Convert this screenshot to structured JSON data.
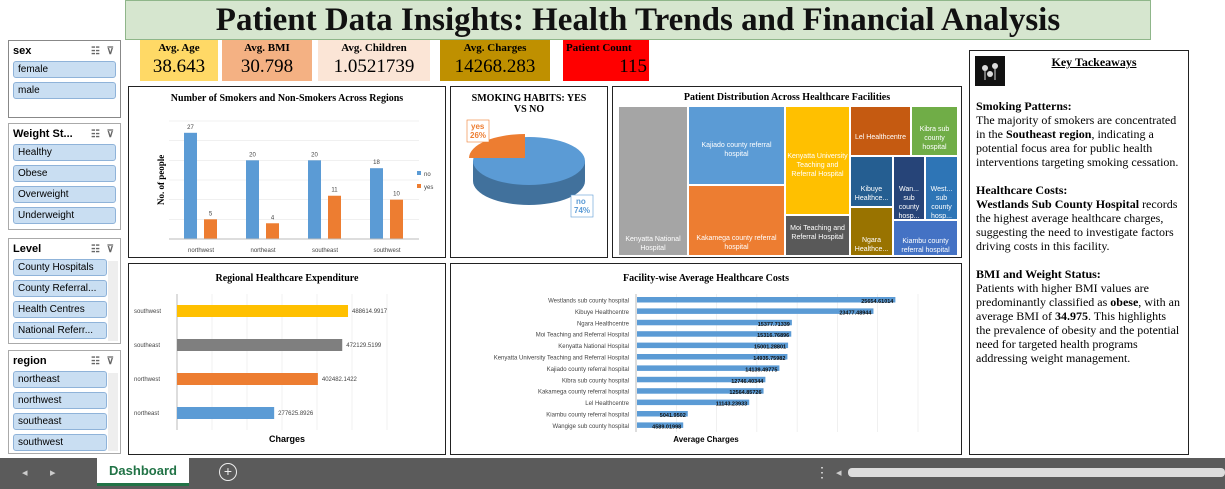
{
  "title": "Patient Data Insights: Health Trends and Financial Analysis",
  "slicers": {
    "sex": {
      "title": "sex",
      "items": [
        "female",
        "male"
      ]
    },
    "weight": {
      "title": "Weight St...",
      "items": [
        "Healthy",
        "Obese",
        "Overweight",
        "Underweight"
      ]
    },
    "level": {
      "title": "Level",
      "items": [
        "County Hospitals",
        "County Referral...",
        "Health Centres",
        "National Referr..."
      ]
    },
    "region": {
      "title": "region",
      "items": [
        "northeast",
        "northwest",
        "southeast",
        "southwest"
      ]
    }
  },
  "kpis": {
    "age": {
      "label": "Avg. Age",
      "value": "38.643",
      "color": "#ffd966"
    },
    "bmi": {
      "label": "Avg. BMI",
      "value": "30.798",
      "color": "#f4b183"
    },
    "children": {
      "label": "Avg. Children",
      "value": "1.0521739",
      "color": "#fbe5d6"
    },
    "charges": {
      "label": "Avg. Charges",
      "value": "14268.283",
      "color": "#bf9000"
    },
    "count": {
      "label": "Patient Count",
      "value": "115",
      "color": "#ff0000"
    }
  },
  "smokers_chart": {
    "title": "Number of Smokers and Non-Smokers Across Regions",
    "ylabel": "No. of people",
    "legend": [
      "no",
      "yes"
    ]
  },
  "pie": {
    "title": "SMOKING HABITS: YES VS NO",
    "yes_label": "yes",
    "yes_pct": "26%",
    "no_label": "no",
    "no_pct": "74%"
  },
  "treemap": {
    "title": "Patient Distribution Across Healthcare Facilities",
    "labels": [
      "Kenyatta National Hospital",
      "Kajiado county referral hospital",
      "Kakamega county referral hospital",
      "Kenyatta University Teaching and Referral Hospital",
      "Moi Teaching and Referral Hospital",
      "Lel Healthcentre",
      "Kibra sub county hospital",
      "Kibuye Healthce...",
      "Wan... sub county hosp...",
      "West... sub county hosp...",
      "Ngara Healthce...",
      "Kiambu county referral hospital"
    ]
  },
  "expenditure": {
    "title": "Regional Healthcare Expenditure",
    "xlabel": "Charges"
  },
  "facility": {
    "title": "Facility-wise Average Healthcare Costs",
    "xlabel": "Average Charges"
  },
  "takeaways": {
    "title": "Key Tackeaways",
    "smoke_head": "Smoking Patterns:",
    "smoke_1": "The majority of smokers are concentrated in the ",
    "smoke_bold": "Southeast region",
    "smoke_2": ", indicating a potential focus area for public health interventions targeting smoking cessation.",
    "cost_head": "Healthcare Costs:",
    "cost_bold": "Westlands Sub County Hospital",
    "cost_text": " records the highest average healthcare charges, suggesting the need to investigate factors driving costs in this facility.",
    "bmi_head": "BMI and Weight Status:",
    "bmi_1": "Patients with higher BMI values are predominantly classified as ",
    "bmi_bold1": "obese",
    "bmi_2": ", with an average BMI of ",
    "bmi_bold2": "34.975",
    "bmi_3": ". This highlights the prevalence of obesity and the potential need for targeted health programs addressing weight management."
  },
  "sheet_tab": "Dashboard",
  "chart_data": [
    {
      "type": "bar",
      "title": "Number of Smokers and Non-Smokers Across Regions",
      "ylabel": "No. of people",
      "categories": [
        "northwest",
        "northeast",
        "southeast",
        "southwest"
      ],
      "series": [
        {
          "name": "no",
          "values": [
            27,
            20,
            20,
            18
          ],
          "color": "#5b9bd5"
        },
        {
          "name": "yes",
          "values": [
            5,
            4,
            11,
            10
          ],
          "color": "#ed7d31"
        }
      ],
      "ylim": [
        0,
        30
      ]
    },
    {
      "type": "pie",
      "title": "SMOKING HABITS: YES VS NO",
      "categories": [
        "yes",
        "no"
      ],
      "values": [
        26,
        74
      ]
    },
    {
      "type": "bar",
      "title": "Regional Healthcare Expenditure",
      "xlabel": "Charges",
      "categories": [
        "southwest",
        "southeast",
        "northwest",
        "northeast"
      ],
      "values": [
        488614.9917,
        472129.5199,
        402482.1422,
        277625.8926
      ],
      "value_labels": [
        "488614.9917",
        "472129.5199",
        "402482.1422",
        "277625.8926"
      ],
      "colors": [
        "#ffc000",
        "#7f7f7f",
        "#ed7d31",
        "#5b9bd5"
      ],
      "xlim": [
        0,
        600000
      ]
    },
    {
      "type": "bar",
      "title": "Facility-wise Average Healthcare Costs",
      "xlabel": "Average Charges",
      "categories": [
        "Westlands sub county hospital",
        "Kibuye Healthcentre",
        "Ngara Healthcentre",
        "Moi Teaching and Referral Hospital",
        "Kenyatta National Hospital",
        "Kenyatta University Teaching and Referral Hospital",
        "Kajiado county referral hospital",
        "Kibra sub county hospital",
        "Kakamega county referral hospital",
        "Lel Healthcentre",
        "Kiambu county referral hospital",
        "Wangige sub county hospital"
      ],
      "values": [
        25654.61014,
        23477.48944,
        15377.71339,
        15316.76896,
        15001.28801,
        14935.75982,
        14139.49775,
        12746.40344,
        12564.85726,
        11143.23933,
        5041.9502,
        4589.01998
      ],
      "value_labels": [
        "25654.61014",
        "23477.48944",
        "15377.71339",
        "15316.76896",
        "15001.28801",
        "14935.75982",
        "14139.49775",
        "12746.40344",
        "12564.85726",
        "11143.23933",
        "5041.9502",
        "4589.01998"
      ],
      "xlim": [
        0,
        28000
      ]
    }
  ]
}
